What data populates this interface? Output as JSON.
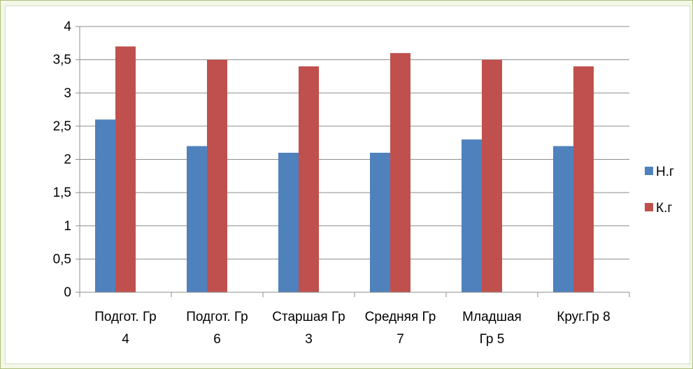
{
  "chart_data": {
    "type": "bar",
    "categories": [
      [
        "Подгот. Гр",
        "4"
      ],
      [
        "Подгот. Гр",
        "6"
      ],
      [
        "Старшая Гр",
        "3"
      ],
      [
        "Средняя Гр",
        "7"
      ],
      [
        "Младшая",
        "Гр 5"
      ],
      [
        "Круг.Гр 8"
      ]
    ],
    "series": [
      {
        "name": "Н.г",
        "color": "#4f81bd",
        "values": [
          2.6,
          2.2,
          2.1,
          2.1,
          2.3,
          2.2
        ]
      },
      {
        "name": "К.г",
        "color": "#c0504d",
        "values": [
          3.7,
          3.5,
          3.4,
          3.6,
          3.5,
          3.4
        ]
      }
    ],
    "ylim": [
      0,
      4
    ],
    "yticks": [
      "0",
      "0,5",
      "1",
      "1,5",
      "2",
      "2,5",
      "3",
      "3,5",
      "4"
    ],
    "ytick_values": [
      0,
      0.5,
      1,
      1.5,
      2,
      2.5,
      3,
      3.5,
      4
    ],
    "grid": true,
    "legend": "right"
  }
}
